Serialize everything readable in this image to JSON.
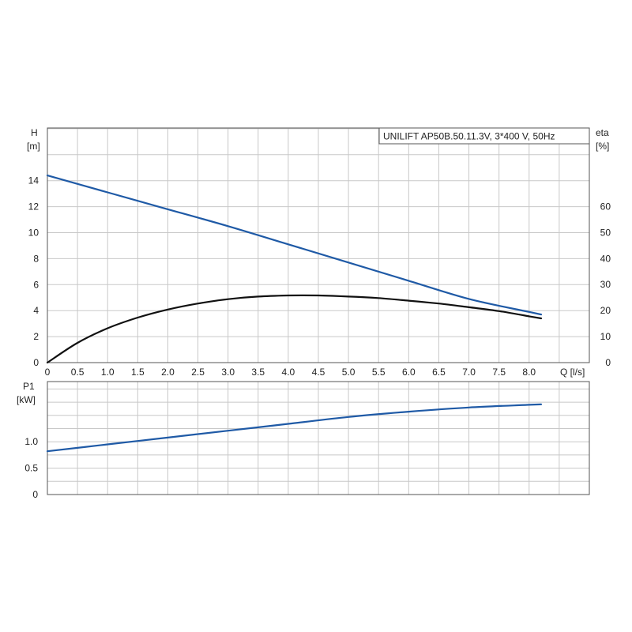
{
  "chart_data": [
    {
      "type": "line",
      "panel": "head-efficiency",
      "title": "UNILIFT AP50B.50.11.3V, 3*400 V, 50Hz",
      "xlabel": "Q [l/s]",
      "ylabel": [
        "H",
        "[m]"
      ],
      "y2label": [
        "eta",
        "[%]"
      ],
      "xlim": [
        0,
        9
      ],
      "ylim": [
        0,
        18
      ],
      "y2lim": [
        0,
        90
      ],
      "xticks": [
        "0",
        "0.5",
        "1.0",
        "1.5",
        "2.0",
        "2.5",
        "3.0",
        "3.5",
        "4.0",
        "4.5",
        "5.0",
        "5.5",
        "6.0",
        "6.5",
        "7.0",
        "7.5",
        "8.0"
      ],
      "yticks": [
        "0",
        "2",
        "4",
        "6",
        "8",
        "10",
        "12",
        "14"
      ],
      "y2ticks": [
        "0",
        "10",
        "20",
        "30",
        "40",
        "50",
        "60"
      ],
      "grid": true,
      "series": [
        {
          "axis": "left",
          "color": "#1f5aa6",
          "x": [
            0,
            1,
            2,
            3,
            4,
            5,
            6,
            7,
            8,
            8.2
          ],
          "y": [
            14.4,
            13.1,
            11.8,
            10.5,
            9.1,
            7.7,
            6.3,
            4.9,
            3.9,
            3.7
          ]
        },
        {
          "axis": "right",
          "color": "#111111",
          "x": [
            0,
            0.5,
            1,
            1.5,
            2,
            2.5,
            3,
            3.5,
            4,
            4.5,
            5,
            5.5,
            6,
            6.5,
            7,
            7.5,
            8,
            8.2
          ],
          "y": [
            0,
            7.6,
            13.2,
            17.3,
            20.4,
            22.7,
            24.4,
            25.4,
            25.8,
            25.8,
            25.4,
            24.8,
            23.8,
            22.7,
            21.3,
            19.8,
            17.8,
            17.0
          ]
        }
      ]
    },
    {
      "type": "line",
      "panel": "power",
      "xlabel": "",
      "ylabel": [
        "P1",
        "[kW]"
      ],
      "xlim": [
        0,
        9
      ],
      "ylim": [
        0,
        2
      ],
      "yticks": [
        "0",
        "0.5",
        "1.0"
      ],
      "grid": true,
      "series": [
        {
          "axis": "left",
          "color": "#1f5aa6",
          "x": [
            0,
            1,
            2,
            3,
            4,
            5,
            6,
            7,
            8,
            8.2
          ],
          "y": [
            0.82,
            0.95,
            1.08,
            1.21,
            1.34,
            1.47,
            1.57,
            1.65,
            1.7,
            1.71
          ]
        }
      ]
    }
  ]
}
